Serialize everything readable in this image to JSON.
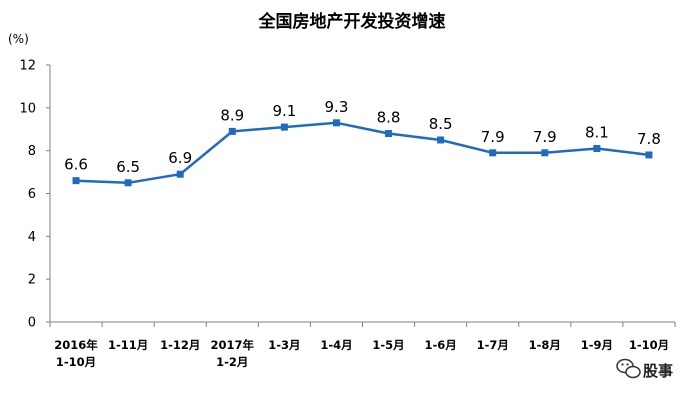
{
  "chart_data": {
    "type": "line",
    "title": "全国房地产开发投资增速",
    "ylabel": "(%)",
    "xlabel": "",
    "ylim": [
      0,
      12
    ],
    "yticks": [
      "0",
      "2",
      "4",
      "6",
      "8",
      "10",
      "12"
    ],
    "grid": false,
    "categories": [
      [
        "2016年",
        "1-10月"
      ],
      [
        "1-11月"
      ],
      [
        "1-12月"
      ],
      [
        "2017年",
        "1-2月"
      ],
      [
        "1-3月"
      ],
      [
        "1-4月"
      ],
      [
        "1-5月"
      ],
      [
        "1-6月"
      ],
      [
        "1-7月"
      ],
      [
        "1-8月"
      ],
      [
        "1-9月"
      ],
      [
        "1-10月"
      ]
    ],
    "values": [
      6.6,
      6.5,
      6.9,
      8.9,
      9.1,
      9.3,
      8.8,
      8.5,
      7.9,
      7.9,
      8.1,
      7.8
    ],
    "data_labels": [
      "6.6",
      "6.5",
      "6.9",
      "8.9",
      "9.1",
      "9.3",
      "8.8",
      "8.5",
      "7.9",
      "7.9",
      "8.1",
      "7.8"
    ],
    "line_color": "#1F6BC0"
  },
  "watermark": {
    "text": "股事",
    "icon": "wechat-icon"
  }
}
